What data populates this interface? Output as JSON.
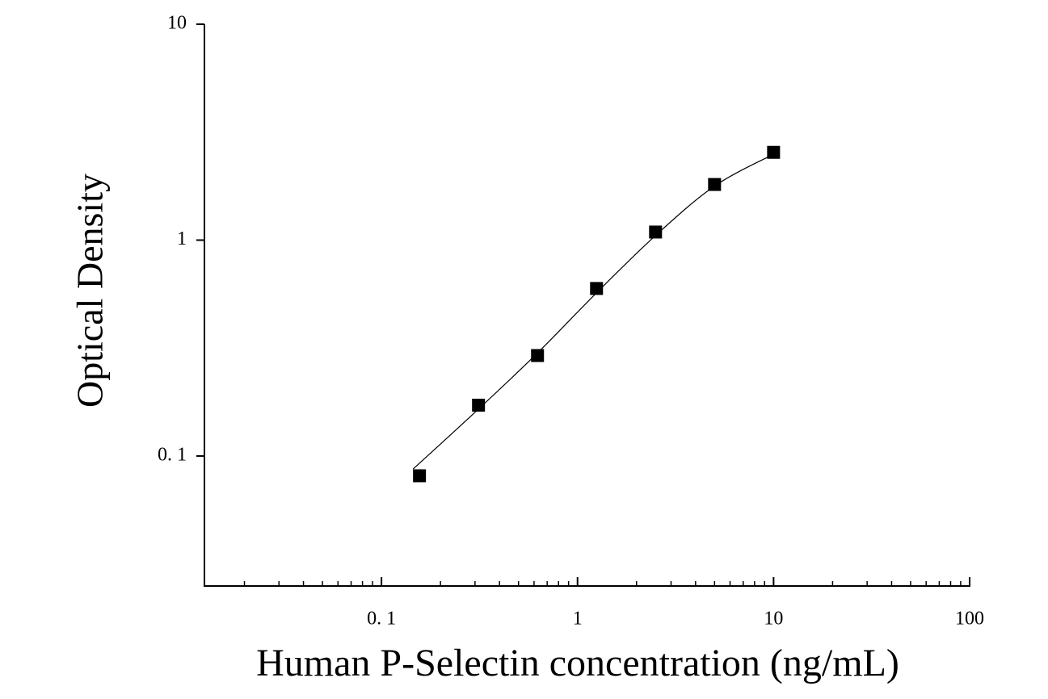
{
  "chart_data": {
    "type": "scatter",
    "x_label": "Human P-Selectin concentration (ng/mL)",
    "y_label": "Optical Density",
    "xscale": "log",
    "yscale": "log",
    "xlim": [
      0.0125,
      100
    ],
    "ylim": [
      0.025,
      10
    ],
    "xticks": [
      {
        "value": 0.1,
        "label": "0. 1"
      },
      1,
      10,
      100
    ],
    "xminorticks": [
      0.02,
      0.03,
      0.04,
      0.05,
      0.06,
      0.07,
      0.08,
      0.09,
      0.2,
      0.3,
      0.4,
      0.5,
      0.6,
      0.7,
      0.8,
      0.9,
      2,
      3,
      4,
      5,
      6,
      7,
      8,
      9,
      20,
      30,
      40,
      50,
      60,
      70,
      80,
      90
    ],
    "yticks": [
      {
        "value": 0.1,
        "label": "0. 1"
      },
      1,
      10
    ],
    "series": [
      {
        "color": "#000000",
        "x": [
          0.15625,
          0.3125,
          0.625,
          1.25,
          2.5,
          5,
          10
        ],
        "values": [
          0.081,
          0.172,
          0.292,
          0.597,
          1.09,
          1.81,
          2.55
        ]
      }
    ],
    "fit": {
      "color": "#000000",
      "x": [
        0.145,
        0.3125,
        0.625,
        1.25,
        2.5,
        5,
        10
      ],
      "values": [
        0.087,
        0.165,
        0.3,
        0.57,
        1.05,
        1.78,
        2.5
      ]
    }
  }
}
